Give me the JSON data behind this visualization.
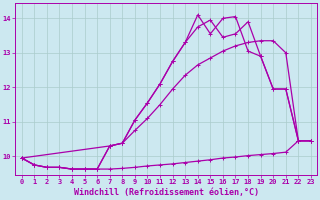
{
  "xlabel": "Windchill (Refroidissement éolien,°C)",
  "background_color": "#cce8f0",
  "grid_color": "#aacccc",
  "line_color": "#aa00aa",
  "xlim": [
    -0.5,
    23.5
  ],
  "ylim": [
    9.45,
    14.45
  ],
  "xticks": [
    0,
    1,
    2,
    3,
    4,
    5,
    6,
    7,
    8,
    9,
    10,
    11,
    12,
    13,
    14,
    15,
    16,
    17,
    18,
    19,
    20,
    21,
    22,
    23
  ],
  "yticks": [
    10,
    11,
    12,
    13,
    14
  ],
  "line1_x": [
    0,
    1,
    2,
    3,
    4,
    5,
    6,
    7,
    8,
    9,
    10,
    11,
    12,
    13,
    14,
    15,
    16,
    17,
    18,
    19,
    20,
    21,
    22,
    23
  ],
  "line1_y": [
    9.95,
    9.75,
    9.68,
    9.68,
    9.63,
    9.63,
    9.63,
    9.63,
    9.65,
    9.68,
    9.72,
    9.75,
    9.78,
    9.82,
    9.86,
    9.9,
    9.95,
    9.98,
    10.02,
    10.05,
    10.08,
    10.12,
    10.45,
    10.45
  ],
  "line2_x": [
    0,
    1,
    2,
    3,
    4,
    5,
    6,
    7,
    8,
    9,
    10,
    11,
    12,
    13,
    14,
    15,
    16,
    17,
    18,
    19,
    20,
    21,
    22,
    23
  ],
  "line2_y": [
    9.95,
    9.75,
    9.68,
    9.68,
    9.63,
    9.63,
    9.63,
    10.3,
    10.38,
    10.75,
    11.1,
    11.5,
    11.95,
    12.35,
    12.65,
    12.85,
    13.05,
    13.2,
    13.3,
    13.35,
    13.35,
    13.0,
    10.45,
    10.45
  ],
  "line3_x": [
    0,
    1,
    2,
    3,
    4,
    5,
    6,
    7,
    8,
    9,
    10,
    11,
    12,
    13,
    14,
    15,
    16,
    17,
    18,
    19,
    20,
    21,
    22,
    23
  ],
  "line3_y": [
    9.95,
    9.75,
    9.68,
    9.68,
    9.63,
    9.63,
    9.63,
    10.3,
    10.38,
    11.05,
    11.55,
    12.1,
    12.75,
    13.3,
    13.75,
    13.95,
    13.45,
    13.55,
    13.9,
    12.9,
    11.95,
    11.95,
    10.45,
    10.45
  ],
  "line4_x": [
    0,
    7,
    8,
    9,
    10,
    11,
    12,
    13,
    14,
    15,
    16,
    17,
    18,
    19,
    20,
    21,
    22,
    23
  ],
  "line4_y": [
    9.95,
    10.3,
    10.38,
    11.05,
    11.55,
    12.1,
    12.75,
    13.3,
    14.1,
    13.55,
    14.0,
    14.05,
    13.05,
    12.9,
    11.95,
    11.95,
    10.45,
    10.45
  ],
  "markersize": 3,
  "linewidth": 0.9,
  "tick_fontsize": 5,
  "xlabel_fontsize": 6
}
